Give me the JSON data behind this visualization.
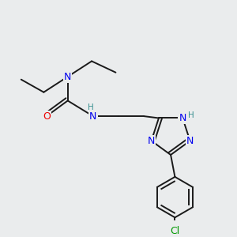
{
  "background_color": "#eaeced",
  "bond_color": "#1a1a1a",
  "atom_colors": {
    "N": "#0000ee",
    "O": "#ee0000",
    "Cl": "#009900",
    "H_label": "#3a9090",
    "C": "#1a1a1a"
  },
  "lw": 1.4
}
